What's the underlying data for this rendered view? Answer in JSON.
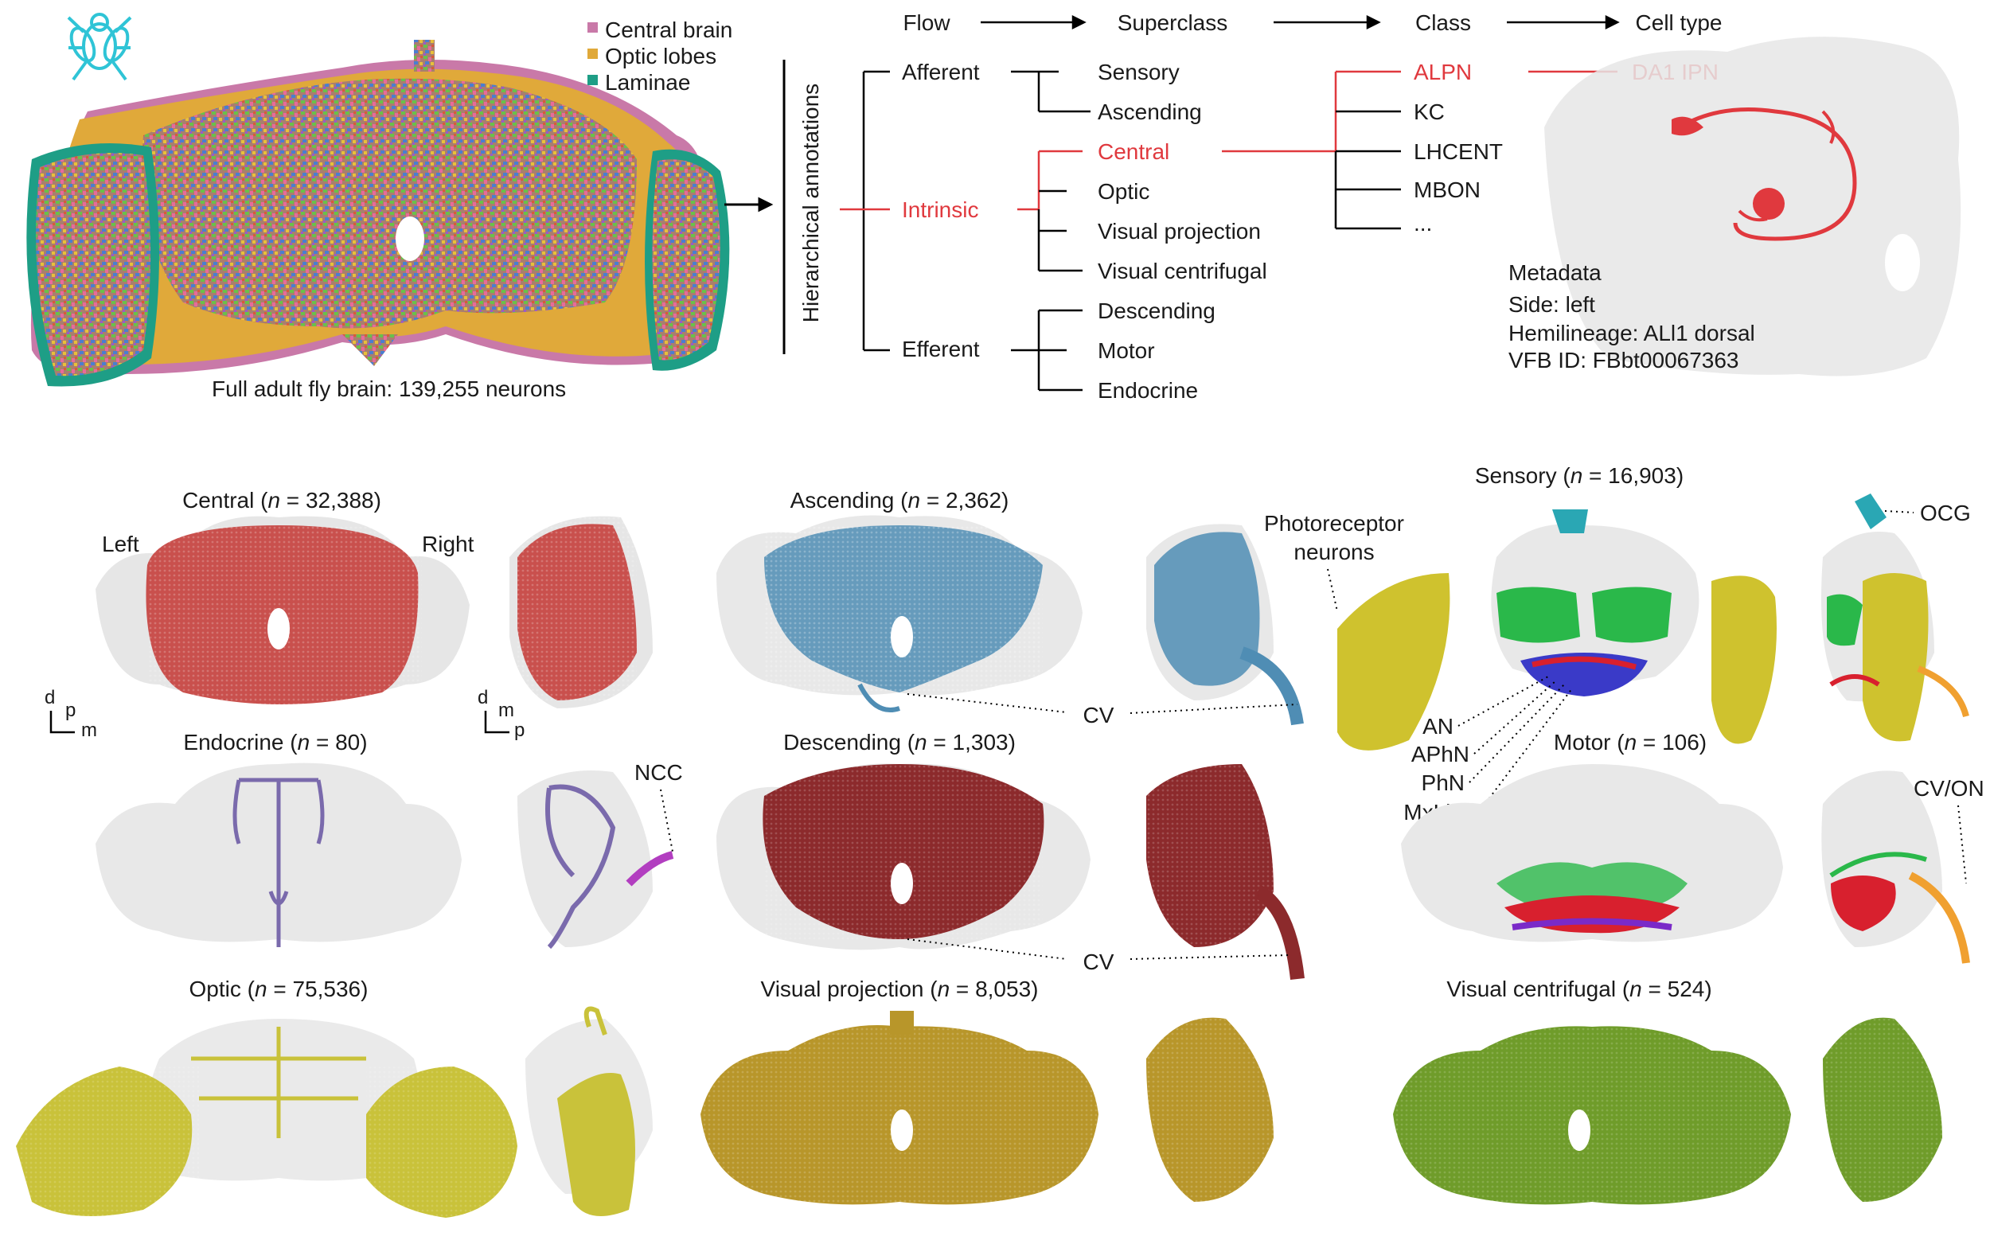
{
  "top": {
    "legend": [
      {
        "label": "Central brain",
        "color": "#c979a8"
      },
      {
        "label": "Optic lobes",
        "color": "#e0a93a"
      },
      {
        "label": "Laminae",
        "color": "#1e9e86"
      }
    ],
    "full_brain_caption": "Full adult fly brain: 139,255 neurons",
    "hierarchy_label": "Hierarchical annotations",
    "stage_headers": [
      "Flow",
      "Superclass",
      "Class",
      "Cell type"
    ],
    "flow": {
      "afferent": "Afferent",
      "intrinsic": "Intrinsic",
      "efferent": "Efferent"
    },
    "superclass": {
      "afferent": [
        "Sensory",
        "Ascending"
      ],
      "intrinsic": [
        "Central",
        "Optic",
        "Visual projection",
        "Visual centrifugal"
      ],
      "efferent": [
        "Descending",
        "Motor",
        "Endocrine"
      ]
    },
    "class": [
      "ALPN",
      "KC",
      "LHCENT",
      "MBON",
      "..."
    ],
    "cell_type": "DA1 IPN",
    "metadata": {
      "title": "Metadata",
      "side": "Side: left",
      "hemilineage": "Hemilineage: ALl1 dorsal",
      "vfb": "VFB ID: FBbt00067363"
    },
    "highlight_color": "#e0393e"
  },
  "panels": {
    "central": {
      "prefix": "Central (",
      "n_var": "n",
      "n_text": " = 32,388)",
      "left": "Left",
      "right": "Right",
      "color": "#c9504d"
    },
    "ascending": {
      "prefix": "Ascending (",
      "n_var": "n",
      "n_text": " = 2,362)",
      "color": "#4f8db4"
    },
    "sensory": {
      "prefix": "Sensory (",
      "n_var": "n",
      "n_text": " = 16,903)"
    },
    "endocrine": {
      "prefix": "Endocrine (",
      "n_var": "n",
      "n_text": " = 80)",
      "color": "#7a6aac"
    },
    "descending": {
      "prefix": "Descending (",
      "n_var": "n",
      "n_text": " = 1,303)",
      "color": "#8c2a2c"
    },
    "motor": {
      "prefix": "Motor (",
      "n_var": "n",
      "n_text": " = 106)"
    },
    "optic": {
      "prefix": "Optic (",
      "n_var": "n",
      "n_text": " = 75,536)",
      "color": "#c9c23a"
    },
    "visual_projection": {
      "prefix": "Visual projection (",
      "n_var": "n",
      "n_text": " = 8,053)",
      "color": "#b8962a"
    },
    "visual_centrifugal": {
      "prefix": "Visual centrifugal (",
      "n_var": "n",
      "n_text": " = 524)",
      "color": "#6f9c2a"
    }
  },
  "annotations": {
    "cv": "CV",
    "ncc": "NCC",
    "ocg": "OCG",
    "cv_on": "CV/ON",
    "photoreceptor_1": "Photoreceptor",
    "photoreceptor_2": "neurons",
    "nerves": [
      "AN",
      "APhN",
      "PhN",
      "MxLbN"
    ]
  },
  "axes": {
    "front": {
      "d": "d",
      "p": "p",
      "m": "m"
    },
    "side": {
      "d": "d",
      "m": "m",
      "p": "p"
    }
  },
  "sensory_colors": {
    "photoreceptor": "#cfc22e",
    "ocg": "#2aa7b4",
    "central": "#2ab84a",
    "nerve_a": "#3a3ac8",
    "nerve_b": "#d8202e",
    "cv_on": "#f0a030"
  }
}
